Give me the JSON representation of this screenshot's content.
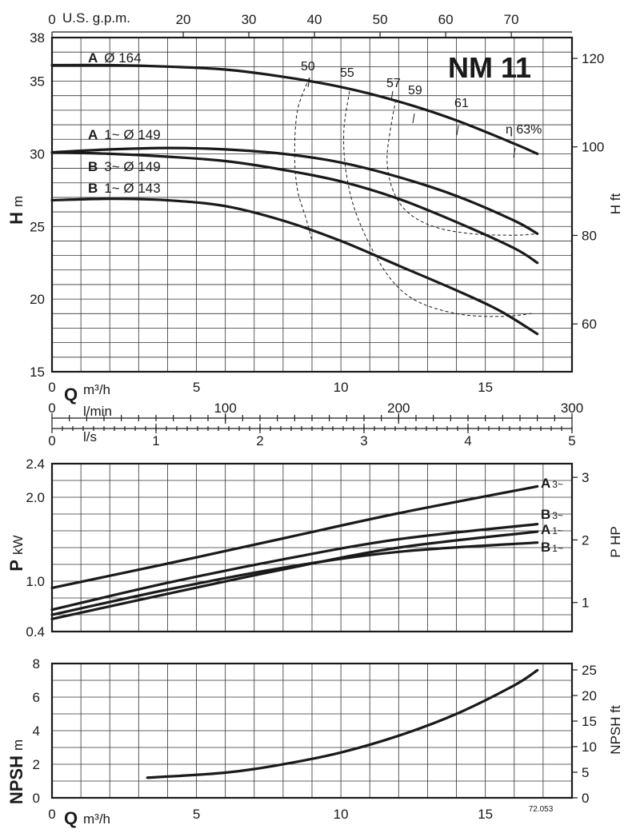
{
  "model_label": "NM 11",
  "drawing_number": "72.053",
  "axis_text": {
    "usgpm": "U.S. g.p.m.",
    "lmin": "l/min",
    "ls": "l/s",
    "q_symbol": "Q",
    "m3h": "m³/h",
    "h_symbol": "H",
    "h_unit": "m",
    "hft": "H ft",
    "p_symbol": "P",
    "p_unit": "kW",
    "php": "P HP",
    "npsh_symbol": "NPSH",
    "npsh_unit": "m",
    "npsh_ft": "NPSH ft"
  },
  "chart_data": [
    {
      "type": "line",
      "panel": "head",
      "xlabel": "Q m³/h",
      "ylabel": "H m",
      "y2label": "H ft",
      "xlim": [
        0,
        18
      ],
      "ylim": [
        15,
        38
      ],
      "y2lim": [
        49.2,
        124.7
      ],
      "grid": true,
      "x_ticks": [
        0,
        5,
        10,
        15
      ],
      "y_ticks": [
        15,
        20,
        25,
        30,
        35,
        38
      ],
      "y2_ticks": [
        60,
        80,
        100,
        120
      ],
      "top_axis": {
        "label": "U.S. g.p.m.",
        "ticks": [
          0,
          20,
          30,
          40,
          50,
          60,
          70
        ],
        "scale": 4.4029
      },
      "series": [
        {
          "name": "A Ø 164",
          "x": [
            0,
            2,
            4,
            6,
            8,
            10,
            12,
            14,
            16,
            16.8
          ],
          "y": [
            36.1,
            36.1,
            36.0,
            35.8,
            35.3,
            34.6,
            33.6,
            32.3,
            30.7,
            30.0
          ]
        },
        {
          "name": "A 1~ Ø 149",
          "x": [
            0,
            2,
            4,
            6,
            8,
            10,
            12,
            14,
            16,
            16.8
          ],
          "y": [
            30.1,
            30.3,
            30.4,
            30.3,
            30.0,
            29.4,
            28.4,
            27.1,
            25.4,
            24.5
          ]
        },
        {
          "name": "B 3~ Ø 149",
          "x": [
            0,
            2,
            4,
            6,
            8,
            10,
            12,
            14,
            16,
            16.8
          ],
          "y": [
            30.1,
            30.0,
            29.8,
            29.5,
            28.9,
            28.1,
            26.9,
            25.3,
            23.5,
            22.5
          ]
        },
        {
          "name": "B 1~ Ø 143",
          "x": [
            0,
            2,
            4,
            6,
            8,
            10,
            12,
            14,
            15.5,
            16.8
          ],
          "y": [
            26.8,
            26.9,
            26.8,
            26.4,
            25.4,
            24.0,
            22.3,
            20.6,
            19.2,
            17.6
          ]
        }
      ],
      "efficiency_curves": [
        {
          "label": "50",
          "x": [
            8.9,
            8.5,
            8.4,
            8.5,
            8.8,
            9.0
          ],
          "y": [
            35.2,
            33.0,
            30.0,
            27.5,
            25.5,
            24.0
          ]
        },
        {
          "label": "55",
          "x": [
            10.3,
            10.1,
            10.2,
            10.6,
            11.5,
            12.5,
            14.0,
            15.5,
            16.6
          ],
          "y": [
            34.3,
            31.5,
            28.5,
            25.5,
            22.0,
            20.0,
            19.0,
            18.8,
            19.0
          ]
        },
        {
          "label": "57",
          "x": [
            11.9,
            11.7,
            11.6,
            11.8,
            12.3,
            13.2,
            14.5,
            16.0,
            16.8
          ],
          "y": [
            33.7,
            31.5,
            29.5,
            27.5,
            26.0,
            25.0,
            24.5,
            24.4,
            24.5
          ]
        }
      ],
      "efficiency_labels": [
        "50",
        "55",
        "57",
        "59",
        "61",
        "η 63%"
      ]
    },
    {
      "type": "line",
      "panel": "flow_scales",
      "lmin_ticks": [
        0,
        100,
        200,
        300
      ],
      "ls_ticks": [
        0,
        1,
        2,
        3,
        4,
        5
      ]
    },
    {
      "type": "line",
      "panel": "power",
      "xlabel": "Q m³/h",
      "ylabel": "P kW",
      "y2label": "P HP",
      "xlim": [
        0,
        18
      ],
      "ylim": [
        0.4,
        2.4
      ],
      "grid": true,
      "y_ticks": [
        0.4,
        1.0,
        2.0,
        2.4
      ],
      "y2_ticks": [
        1,
        2,
        3
      ],
      "series": [
        {
          "name": "A 3~",
          "x": [
            0,
            4,
            8,
            12,
            16.8
          ],
          "y": [
            0.92,
            1.21,
            1.51,
            1.81,
            2.13
          ]
        },
        {
          "name": "B 3~",
          "x": [
            0,
            4,
            8,
            12,
            16.8
          ],
          "y": [
            0.66,
            0.98,
            1.26,
            1.5,
            1.68
          ]
        },
        {
          "name": "A 1~",
          "x": [
            0,
            4,
            8,
            12,
            16.8
          ],
          "y": [
            0.55,
            0.85,
            1.14,
            1.4,
            1.59
          ]
        },
        {
          "name": "B 1~",
          "x": [
            0,
            4,
            8,
            12,
            16.8
          ],
          "y": [
            0.6,
            0.9,
            1.16,
            1.35,
            1.46
          ]
        }
      ],
      "series_labels": [
        {
          "bold": "A",
          "small": "3~"
        },
        {
          "bold": "B",
          "small": "3~"
        },
        {
          "bold": "A",
          "small": "1~"
        },
        {
          "bold": "B",
          "small": "1~"
        }
      ]
    },
    {
      "type": "line",
      "panel": "npsh",
      "xlabel": "Q m³/h",
      "ylabel": "NPSH m",
      "y2label": "NPSH ft",
      "xlim": [
        0,
        18
      ],
      "ylim": [
        0,
        8
      ],
      "grid": true,
      "x_ticks": [
        0,
        5,
        10,
        15
      ],
      "y_ticks": [
        0,
        2,
        4,
        6,
        8
      ],
      "y2_ticks": [
        0,
        5,
        10,
        15,
        20,
        25
      ],
      "series": [
        {
          "name": "NPSH",
          "x": [
            3.3,
            6,
            8,
            10,
            12,
            14,
            16,
            16.8
          ],
          "y": [
            1.2,
            1.5,
            2.0,
            2.7,
            3.7,
            5.0,
            6.7,
            7.6
          ]
        }
      ]
    }
  ]
}
